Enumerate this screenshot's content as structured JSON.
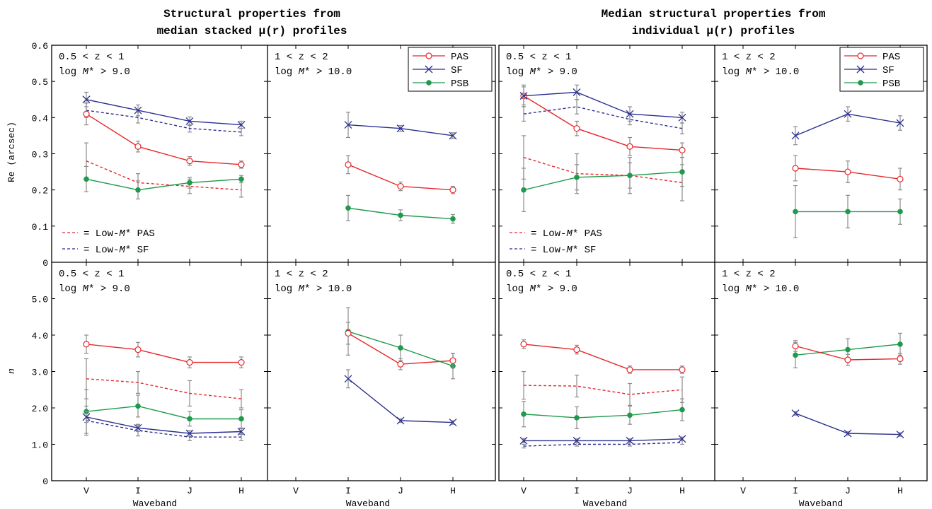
{
  "titles": {
    "left": [
      "Structural properties from",
      "median stacked μ(r) profiles"
    ],
    "right": [
      "Median structural properties from",
      "individual μ(r) profiles"
    ]
  },
  "axes": {
    "xlabel": "Waveband",
    "ylabel_top": "Re (arcsec)",
    "ylabel_bottom": "n",
    "categories": [
      "V",
      "I",
      "J",
      "H"
    ],
    "top_yticks": [
      "0",
      "0.1",
      "0.2",
      "0.3",
      "0.4",
      "0.5",
      "0.6"
    ],
    "bottom_yticks": [
      "0",
      "1.0",
      "2.0",
      "3.0",
      "4.0",
      "5.0"
    ],
    "top_ylim": [
      0,
      0.6
    ],
    "bottom_ylim": [
      0,
      6.0
    ]
  },
  "labels": {
    "lowz": [
      "0.5 < z < 1",
      "log M* > 9.0"
    ],
    "highz": [
      "1 < z < 2",
      "log M* > 10.0"
    ],
    "lowm_pas": "= Low-M* PAS",
    "lowm_sf": "= Low-M* SF"
  },
  "legend": [
    "PAS",
    "SF",
    "PSB"
  ],
  "colors": {
    "PAS": "#e8262a",
    "SF": "#2b2f8f",
    "PSB": "#1f9a4c",
    "err": "#8c8c8c"
  },
  "chart_data": [
    {
      "type": "line",
      "panel": "stacked-Re-lowz",
      "categories": [
        "V",
        "I",
        "J",
        "H"
      ],
      "ylim": [
        0,
        0.6
      ],
      "series": [
        {
          "name": "PAS",
          "x": [
            0,
            1,
            2,
            3
          ],
          "values": [
            0.41,
            0.32,
            0.28,
            0.27
          ],
          "err": [
            0.03,
            0.015,
            0.012,
            0.01
          ]
        },
        {
          "name": "SF",
          "x": [
            0,
            1,
            2,
            3
          ],
          "values": [
            0.45,
            0.42,
            0.39,
            0.38
          ],
          "err": [
            0.02,
            0.015,
            0.012,
            0.01
          ]
        },
        {
          "name": "PSB",
          "x": [
            0,
            1,
            2,
            3
          ],
          "values": [
            0.23,
            0.2,
            0.22,
            0.23
          ],
          "err": [
            0.035,
            0.025,
            0.015,
            0.01
          ]
        },
        {
          "name": "Low-M* PAS",
          "x": [
            0,
            1,
            2,
            3
          ],
          "values": [
            0.28,
            0.22,
            0.21,
            0.2
          ],
          "err": [
            0.05,
            0.025,
            0.02,
            0.02
          ]
        },
        {
          "name": "Low-M* SF",
          "x": [
            0,
            1,
            2,
            3
          ],
          "values": [
            0.42,
            0.4,
            0.37,
            0.36
          ],
          "err": [
            0.02,
            0.015,
            0.01,
            0.01
          ]
        }
      ]
    },
    {
      "type": "line",
      "panel": "stacked-Re-highz",
      "categories": [
        "V",
        "I",
        "J",
        "H"
      ],
      "ylim": [
        0,
        0.6
      ],
      "series": [
        {
          "name": "PAS",
          "x": [
            1,
            2,
            3
          ],
          "values": [
            0.27,
            0.21,
            0.2
          ],
          "err": [
            0.025,
            0.012,
            0.01
          ]
        },
        {
          "name": "SF",
          "x": [
            1,
            2,
            3
          ],
          "values": [
            0.38,
            0.37,
            0.35
          ],
          "err": [
            0.035,
            0.008,
            0.008
          ]
        },
        {
          "name": "PSB",
          "x": [
            1,
            2,
            3
          ],
          "values": [
            0.15,
            0.13,
            0.12
          ],
          "err": [
            0.035,
            0.015,
            0.012
          ]
        }
      ]
    },
    {
      "type": "line",
      "panel": "individual-Re-lowz",
      "categories": [
        "V",
        "I",
        "J",
        "H"
      ],
      "ylim": [
        0,
        0.6
      ],
      "series": [
        {
          "name": "PAS",
          "x": [
            0,
            1,
            2,
            3
          ],
          "values": [
            0.46,
            0.37,
            0.32,
            0.31
          ],
          "err": [
            0.03,
            0.02,
            0.025,
            0.02
          ]
        },
        {
          "name": "SF",
          "x": [
            0,
            1,
            2,
            3
          ],
          "values": [
            0.46,
            0.47,
            0.41,
            0.4
          ],
          "err": [
            0.025,
            0.02,
            0.02,
            0.015
          ]
        },
        {
          "name": "PSB",
          "x": [
            0,
            1,
            2,
            3
          ],
          "values": [
            0.2,
            0.235,
            0.24,
            0.25
          ],
          "err": [
            0.06,
            0.035,
            0.035,
            0.04
          ]
        },
        {
          "name": "Low-M* PAS",
          "x": [
            0,
            1,
            2,
            3
          ],
          "values": [
            0.29,
            0.245,
            0.24,
            0.22
          ],
          "err": [
            0.06,
            0.055,
            0.05,
            0.05
          ]
        },
        {
          "name": "Low-M* SF",
          "x": [
            0,
            1,
            2,
            3
          ],
          "values": [
            0.41,
            0.43,
            0.395,
            0.37
          ],
          "err": [
            0.02,
            0.02,
            0.015,
            0.015
          ]
        }
      ]
    },
    {
      "type": "line",
      "panel": "individual-Re-highz",
      "categories": [
        "V",
        "I",
        "J",
        "H"
      ],
      "ylim": [
        0,
        0.6
      ],
      "series": [
        {
          "name": "PAS",
          "x": [
            1,
            2,
            3
          ],
          "values": [
            0.26,
            0.25,
            0.23
          ],
          "err": [
            0.035,
            0.03,
            0.03
          ]
        },
        {
          "name": "SF",
          "x": [
            1,
            2,
            3
          ],
          "values": [
            0.35,
            0.41,
            0.385
          ],
          "err": [
            0.025,
            0.02,
            0.02
          ]
        },
        {
          "name": "PSB",
          "x": [
            1,
            2,
            3
          ],
          "values": [
            0.14,
            0.14,
            0.14
          ],
          "err": [
            0.072,
            0.045,
            0.035
          ]
        }
      ]
    },
    {
      "type": "line",
      "panel": "stacked-n-lowz",
      "categories": [
        "V",
        "I",
        "J",
        "H"
      ],
      "ylim": [
        0,
        6.0
      ],
      "series": [
        {
          "name": "PAS",
          "x": [
            0,
            1,
            2,
            3
          ],
          "values": [
            3.75,
            3.6,
            3.25,
            3.25
          ],
          "err": [
            0.25,
            0.2,
            0.15,
            0.15
          ]
        },
        {
          "name": "SF",
          "x": [
            0,
            1,
            2,
            3
          ],
          "values": [
            1.75,
            1.45,
            1.3,
            1.35
          ],
          "err": [
            0.15,
            0.1,
            0.08,
            0.08
          ]
        },
        {
          "name": "PSB",
          "x": [
            0,
            1,
            2,
            3
          ],
          "values": [
            1.9,
            2.05,
            1.7,
            1.7
          ],
          "err": [
            0.6,
            0.3,
            0.2,
            0.25
          ]
        },
        {
          "name": "Low-M* PAS",
          "x": [
            0,
            1,
            2,
            3
          ],
          "values": [
            2.8,
            2.7,
            2.4,
            2.25
          ],
          "err": [
            0.55,
            0.3,
            0.35,
            0.25
          ]
        },
        {
          "name": "Low-M* SF",
          "x": [
            0,
            1,
            2,
            3
          ],
          "values": [
            1.65,
            1.38,
            1.2,
            1.2
          ],
          "err": [
            0.4,
            0.15,
            0.1,
            0.1
          ]
        }
      ]
    },
    {
      "type": "line",
      "panel": "stacked-n-highz",
      "categories": [
        "V",
        "I",
        "J",
        "H"
      ],
      "ylim": [
        0,
        6.0
      ],
      "series": [
        {
          "name": "PAS",
          "x": [
            1,
            2,
            3
          ],
          "values": [
            4.05,
            3.2,
            3.3
          ],
          "err": [
            0.3,
            0.15,
            0.2
          ]
        },
        {
          "name": "SF",
          "x": [
            1,
            2,
            3
          ],
          "values": [
            2.8,
            1.65,
            1.6
          ],
          "err": [
            0.25,
            0.05,
            0.05
          ]
        },
        {
          "name": "PSB",
          "x": [
            1,
            2,
            3
          ],
          "values": [
            4.1,
            3.65,
            3.15
          ],
          "err": [
            0.65,
            0.35,
            0.35
          ]
        }
      ]
    },
    {
      "type": "line",
      "panel": "individual-n-lowz",
      "categories": [
        "V",
        "I",
        "J",
        "H"
      ],
      "ylim": [
        0,
        6.0
      ],
      "series": [
        {
          "name": "PAS",
          "x": [
            0,
            1,
            2,
            3
          ],
          "values": [
            3.75,
            3.6,
            3.05,
            3.05
          ],
          "err": [
            0.12,
            0.12,
            0.1,
            0.1
          ]
        },
        {
          "name": "SF",
          "x": [
            0,
            1,
            2,
            3
          ],
          "values": [
            1.1,
            1.1,
            1.1,
            1.15
          ],
          "err": [
            0.06,
            0.05,
            0.05,
            0.05
          ]
        },
        {
          "name": "PSB",
          "x": [
            0,
            1,
            2,
            3
          ],
          "values": [
            1.83,
            1.73,
            1.8,
            1.95
          ],
          "err": [
            0.35,
            0.3,
            0.25,
            0.3
          ]
        },
        {
          "name": "Low-M* PAS",
          "x": [
            0,
            1,
            2,
            3
          ],
          "values": [
            2.62,
            2.6,
            2.37,
            2.5
          ],
          "err": [
            0.38,
            0.3,
            0.3,
            0.35
          ]
        },
        {
          "name": "Low-M* SF",
          "x": [
            0,
            1,
            2,
            3
          ],
          "values": [
            0.95,
            1.0,
            1.0,
            1.05
          ],
          "err": [
            0.05,
            0.05,
            0.05,
            0.05
          ]
        }
      ]
    },
    {
      "type": "line",
      "panel": "individual-n-highz",
      "categories": [
        "V",
        "I",
        "J",
        "H"
      ],
      "ylim": [
        0,
        6.0
      ],
      "series": [
        {
          "name": "PAS",
          "x": [
            1,
            2,
            3
          ],
          "values": [
            3.7,
            3.32,
            3.35
          ],
          "err": [
            0.15,
            0.15,
            0.15
          ]
        },
        {
          "name": "SF",
          "x": [
            1,
            2,
            3
          ],
          "values": [
            1.85,
            1.3,
            1.27
          ],
          "err": [
            0.05,
            0.05,
            0.05
          ]
        },
        {
          "name": "PSB",
          "x": [
            1,
            2,
            3
          ],
          "values": [
            3.45,
            3.6,
            3.75
          ],
          "err": [
            0.35,
            0.3,
            0.3
          ]
        }
      ]
    }
  ]
}
